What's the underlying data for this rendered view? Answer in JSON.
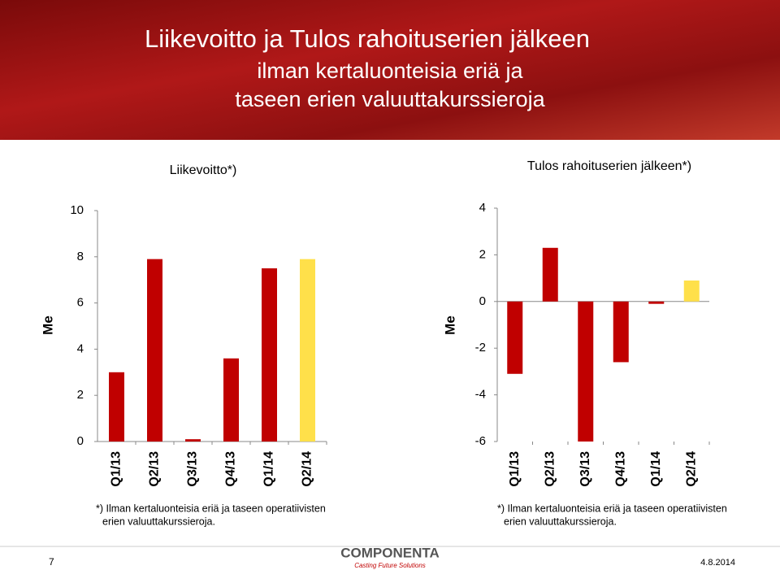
{
  "header": {
    "title": "Liikevoitto ja Tulos rahoituserien jälkeen",
    "subtitle_lines": [
      "ilman kertaluonteisia eriä ja",
      "taseen erien valuuttakurssieroja"
    ]
  },
  "chart_data": [
    {
      "type": "bar",
      "title": "Liikevoitto*)",
      "ylabel": "Me",
      "categories": [
        "Q1/13",
        "Q2/13",
        "Q3/13",
        "Q4/13",
        "Q1/14",
        "Q2/14"
      ],
      "values": [
        3.0,
        7.9,
        0.1,
        3.6,
        7.5,
        7.9
      ],
      "colors": [
        "#c00000",
        "#c00000",
        "#c00000",
        "#c00000",
        "#c00000",
        "#ffe04a"
      ],
      "ylim": [
        0,
        10
      ],
      "yticks": [
        0,
        2,
        4,
        6,
        8,
        10
      ],
      "note_lines": [
        "*) Ilman kertaluonteisia eriä ja taseen operatiivisten",
        "erien valuuttakurssieroja."
      ]
    },
    {
      "type": "bar",
      "title": "Tulos rahoituserien jälkeen*)",
      "ylabel": "Me",
      "categories": [
        "Q1/13",
        "Q2/13",
        "Q3/13",
        "Q4/13",
        "Q1/14",
        "Q2/14"
      ],
      "values": [
        -3.1,
        2.3,
        -6.0,
        -2.6,
        -0.1,
        0.9
      ],
      "colors": [
        "#c00000",
        "#c00000",
        "#c00000",
        "#c00000",
        "#c00000",
        "#ffe04a"
      ],
      "ylim": [
        -6,
        4
      ],
      "yticks": [
        -6,
        -4,
        -2,
        0,
        2,
        4
      ],
      "note_lines": [
        "*) Ilman kertaluonteisia eriä ja taseen operatiivisten",
        "erien valuuttakurssieroja."
      ]
    }
  ],
  "footer": {
    "page": "7",
    "logo": "COMPONENTA",
    "tagline": "Casting Future Solutions",
    "date": "4.8.2014"
  }
}
